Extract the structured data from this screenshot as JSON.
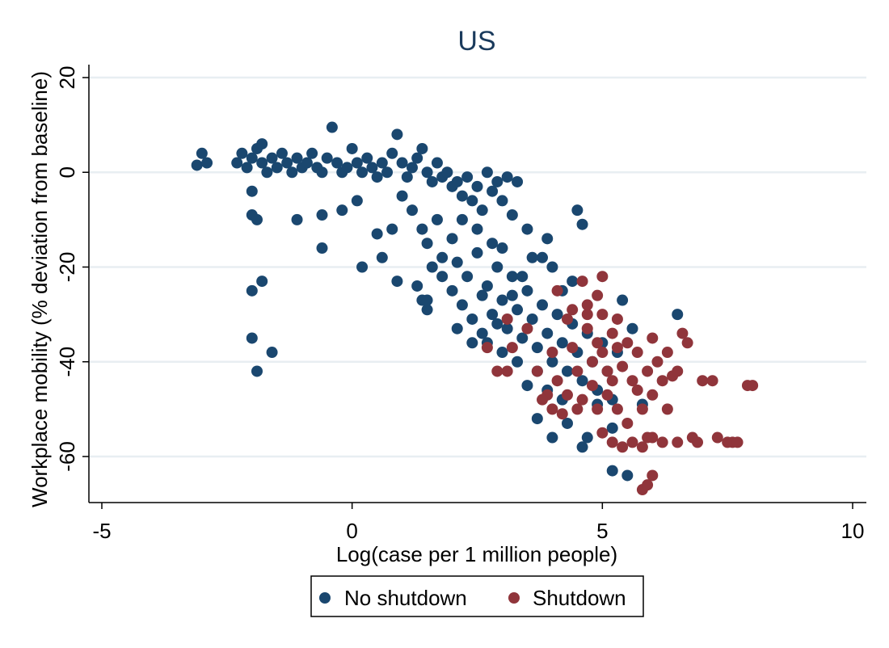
{
  "chart_data": {
    "type": "scatter",
    "title": "US",
    "xlabel": "Log(case per 1 million people)",
    "ylabel": "Workplace mobility (% deviation from baseline)",
    "xlim": [
      -5,
      10
    ],
    "ylim": [
      -70,
      22
    ],
    "xticks": [
      -5,
      0,
      5,
      10
    ],
    "yticks": [
      20,
      0,
      -20,
      -40,
      -60
    ],
    "grid": "horizontal",
    "legend_position": "bottom",
    "series": [
      {
        "name": "No shutdown",
        "color": "#1a476f",
        "points": [
          [
            -3.1,
            1.5
          ],
          [
            -3.0,
            4
          ],
          [
            -2.9,
            2
          ],
          [
            -2.3,
            2
          ],
          [
            -2.2,
            4
          ],
          [
            -2.1,
            1
          ],
          [
            -2.0,
            3
          ],
          [
            -1.9,
            5
          ],
          [
            -1.8,
            6
          ],
          [
            -1.8,
            2
          ],
          [
            -1.7,
            0
          ],
          [
            -1.6,
            3
          ],
          [
            -1.5,
            1
          ],
          [
            -1.4,
            4
          ],
          [
            -1.3,
            2
          ],
          [
            -1.2,
            0
          ],
          [
            -1.1,
            3
          ],
          [
            -1.0,
            1
          ],
          [
            -0.9,
            2
          ],
          [
            -0.8,
            4
          ],
          [
            -0.7,
            1
          ],
          [
            -0.6,
            0
          ],
          [
            -0.5,
            3
          ],
          [
            -0.4,
            9.5
          ],
          [
            -0.3,
            2
          ],
          [
            -0.2,
            0
          ],
          [
            -0.1,
            1
          ],
          [
            0.0,
            5
          ],
          [
            0.1,
            2
          ],
          [
            0.2,
            0
          ],
          [
            0.3,
            3
          ],
          [
            0.4,
            1
          ],
          [
            0.5,
            -1
          ],
          [
            0.6,
            2
          ],
          [
            0.7,
            0
          ],
          [
            0.8,
            4
          ],
          [
            0.9,
            8
          ],
          [
            1.0,
            2
          ],
          [
            1.1,
            -1
          ],
          [
            1.2,
            1
          ],
          [
            1.3,
            3
          ],
          [
            1.4,
            5
          ],
          [
            1.5,
            0
          ],
          [
            1.6,
            -2
          ],
          [
            1.7,
            2
          ],
          [
            1.8,
            -1
          ],
          [
            1.9,
            0
          ],
          [
            2.0,
            -3
          ],
          [
            2.1,
            -2
          ],
          [
            2.2,
            -5
          ],
          [
            2.3,
            -1
          ],
          [
            2.4,
            -6
          ],
          [
            2.5,
            -3
          ],
          [
            2.6,
            -8
          ],
          [
            2.7,
            0
          ],
          [
            2.8,
            -4
          ],
          [
            2.9,
            -2
          ],
          [
            3.0,
            -6
          ],
          [
            3.1,
            -1
          ],
          [
            3.3,
            -2
          ],
          [
            -2.0,
            -4
          ],
          [
            -2.0,
            -9
          ],
          [
            -1.9,
            -10
          ],
          [
            -1.1,
            -10
          ],
          [
            -0.6,
            -9
          ],
          [
            -0.6,
            -16
          ],
          [
            -0.2,
            -8
          ],
          [
            0.1,
            -6
          ],
          [
            0.2,
            -20
          ],
          [
            0.5,
            -13
          ],
          [
            0.8,
            -12
          ],
          [
            0.9,
            -23
          ],
          [
            0.6,
            -18
          ],
          [
            1.0,
            -5
          ],
          [
            1.2,
            -8
          ],
          [
            1.4,
            -12
          ],
          [
            1.5,
            -15
          ],
          [
            1.7,
            -10
          ],
          [
            1.8,
            -18
          ],
          [
            2.0,
            -14
          ],
          [
            -2.0,
            -25
          ],
          [
            -1.8,
            -23
          ],
          [
            -2.0,
            -35
          ],
          [
            -1.6,
            -38
          ],
          [
            -1.9,
            -42
          ],
          [
            1.3,
            -24
          ],
          [
            1.4,
            -27
          ],
          [
            1.5,
            -29
          ],
          [
            1.6,
            -20
          ],
          [
            1.8,
            -22
          ],
          [
            2.0,
            -25
          ],
          [
            2.1,
            -19
          ],
          [
            2.2,
            -28
          ],
          [
            2.3,
            -22
          ],
          [
            2.4,
            -31
          ],
          [
            2.5,
            -17
          ],
          [
            2.6,
            -26
          ],
          [
            2.7,
            -24
          ],
          [
            2.8,
            -30
          ],
          [
            2.9,
            -20
          ],
          [
            3.0,
            -27
          ],
          [
            3.1,
            -33
          ],
          [
            3.2,
            -22
          ],
          [
            3.3,
            -29
          ],
          [
            3.4,
            -35
          ],
          [
            3.5,
            -25
          ],
          [
            3.6,
            -31
          ],
          [
            3.7,
            -37
          ],
          [
            3.8,
            -28
          ],
          [
            3.9,
            -34
          ],
          [
            4.0,
            -40
          ],
          [
            4.1,
            -30
          ],
          [
            4.2,
            -36
          ],
          [
            4.3,
            -42
          ],
          [
            4.4,
            -32
          ],
          [
            4.5,
            -38
          ],
          [
            4.6,
            -44
          ],
          [
            4.7,
            -34
          ],
          [
            4.8,
            -40
          ],
          [
            4.9,
            -46
          ],
          [
            5.0,
            -36
          ],
          [
            5.1,
            -42
          ],
          [
            5.2,
            -48
          ],
          [
            5.3,
            -38
          ],
          [
            5.4,
            -27
          ],
          [
            2.2,
            -10
          ],
          [
            2.5,
            -12
          ],
          [
            2.8,
            -15
          ],
          [
            3.0,
            -16
          ],
          [
            3.2,
            -9
          ],
          [
            3.5,
            -12
          ],
          [
            3.8,
            -18
          ],
          [
            4.0,
            -20
          ],
          [
            4.2,
            -25
          ],
          [
            4.4,
            -23
          ],
          [
            4.6,
            -11
          ],
          [
            4.5,
            -8
          ],
          [
            3.9,
            -14
          ],
          [
            3.6,
            -18
          ],
          [
            3.4,
            -22
          ],
          [
            3.2,
            -26
          ],
          [
            2.9,
            -32
          ],
          [
            2.6,
            -34
          ],
          [
            2.4,
            -36
          ],
          [
            2.1,
            -33
          ],
          [
            3.5,
            -45
          ],
          [
            3.7,
            -52
          ],
          [
            4.0,
            -56
          ],
          [
            4.3,
            -53
          ],
          [
            4.6,
            -58
          ],
          [
            4.7,
            -56
          ],
          [
            5.2,
            -63
          ],
          [
            5.5,
            -64
          ],
          [
            6.5,
            -30
          ],
          [
            5.6,
            -33
          ],
          [
            5.8,
            -49
          ],
          [
            5.2,
            -54
          ],
          [
            4.9,
            -49
          ],
          [
            4.2,
            -48
          ],
          [
            3.9,
            -46
          ],
          [
            3.7,
            -42
          ],
          [
            3.3,
            -40
          ],
          [
            3.0,
            -38
          ],
          [
            2.7,
            -36
          ],
          [
            1.5,
            -27
          ]
        ]
      },
      {
        "name": "Shutdown",
        "color": "#90353b",
        "points": [
          [
            3.1,
            -31
          ],
          [
            3.2,
            -37
          ],
          [
            3.5,
            -33
          ],
          [
            2.7,
            -37
          ],
          [
            2.9,
            -42
          ],
          [
            3.1,
            -42
          ],
          [
            3.7,
            -42
          ],
          [
            3.9,
            -47
          ],
          [
            4.0,
            -38
          ],
          [
            4.0,
            -50
          ],
          [
            4.1,
            -44
          ],
          [
            4.1,
            -25
          ],
          [
            4.3,
            -31
          ],
          [
            4.3,
            -47
          ],
          [
            4.4,
            -37
          ],
          [
            4.4,
            -29
          ],
          [
            4.5,
            -42
          ],
          [
            4.6,
            -48
          ],
          [
            4.6,
            -23
          ],
          [
            4.7,
            -28
          ],
          [
            4.7,
            -33
          ],
          [
            4.8,
            -40
          ],
          [
            4.8,
            -45
          ],
          [
            4.9,
            -36
          ],
          [
            4.9,
            -50
          ],
          [
            5.0,
            -22
          ],
          [
            5.0,
            -30
          ],
          [
            5.0,
            -38
          ],
          [
            5.1,
            -42
          ],
          [
            5.1,
            -47
          ],
          [
            5.2,
            -34
          ],
          [
            5.2,
            -44
          ],
          [
            5.3,
            -50
          ],
          [
            5.3,
            -37
          ],
          [
            5.4,
            -41
          ],
          [
            5.5,
            -36
          ],
          [
            5.5,
            -53
          ],
          [
            5.6,
            -44
          ],
          [
            5.7,
            -38
          ],
          [
            5.7,
            -46
          ],
          [
            5.8,
            -50
          ],
          [
            5.9,
            -42
          ],
          [
            5.9,
            -56
          ],
          [
            6.0,
            -35
          ],
          [
            6.0,
            -47
          ],
          [
            6.1,
            -40
          ],
          [
            6.2,
            -44
          ],
          [
            6.3,
            -50
          ],
          [
            6.3,
            -38
          ],
          [
            6.4,
            -43
          ],
          [
            6.5,
            -42
          ],
          [
            6.5,
            -57
          ],
          [
            6.6,
            -34
          ],
          [
            6.7,
            -36
          ],
          [
            6.8,
            -56
          ],
          [
            6.9,
            -57
          ],
          [
            7.0,
            -44
          ],
          [
            7.2,
            -44
          ],
          [
            7.3,
            -56
          ],
          [
            7.5,
            -57
          ],
          [
            7.6,
            -57
          ],
          [
            7.7,
            -57
          ],
          [
            7.9,
            -45
          ],
          [
            8.0,
            -45
          ],
          [
            5.0,
            -55
          ],
          [
            5.2,
            -57
          ],
          [
            5.4,
            -58
          ],
          [
            5.6,
            -57
          ],
          [
            5.8,
            -58
          ],
          [
            6.0,
            -56
          ],
          [
            6.2,
            -57
          ],
          [
            5.8,
            -67
          ],
          [
            5.9,
            -66
          ],
          [
            6.0,
            -64
          ],
          [
            4.5,
            -50
          ],
          [
            4.2,
            -51
          ],
          [
            3.8,
            -48
          ],
          [
            4.7,
            -30
          ],
          [
            4.9,
            -26
          ],
          [
            5.3,
            -31
          ]
        ]
      }
    ]
  }
}
